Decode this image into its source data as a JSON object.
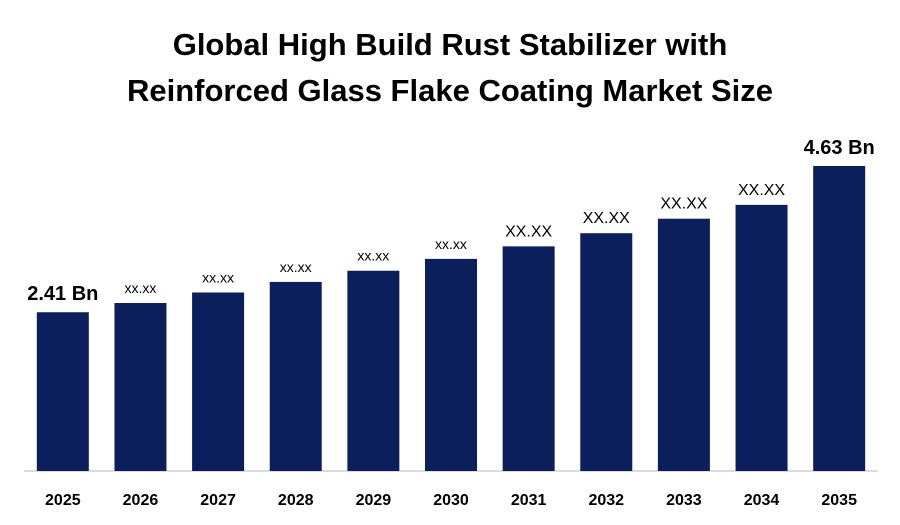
{
  "title_line1": "Global High Build Rust Stabilizer with",
  "title_line2": "Reinforced Glass Flake Coating Market Size",
  "chart_data": {
    "type": "bar",
    "title": "Global High Build Rust Stabilizer with Reinforced Glass Flake Coating Market Size",
    "xlabel": "",
    "ylabel": "",
    "categories": [
      "2025",
      "2026",
      "2027",
      "2028",
      "2029",
      "2030",
      "2031",
      "2032",
      "2033",
      "2034",
      "2035"
    ],
    "values": [
      2.41,
      2.55,
      2.71,
      2.87,
      3.04,
      3.22,
      3.41,
      3.61,
      3.83,
      4.04,
      4.63
    ],
    "labels": [
      "2.41 Bn",
      "xx.xx",
      "xx.xx",
      "xx.xx",
      "xx.xx",
      "xx.xx",
      "XX.XX",
      "XX.XX",
      "XX.XX",
      "XX.XX",
      "4.63 Bn"
    ],
    "ylim": [
      0,
      5.2
    ],
    "bar_color": "#0b1f5c",
    "axis_color": "#d0d0d0",
    "grid": false,
    "legend": "none"
  }
}
